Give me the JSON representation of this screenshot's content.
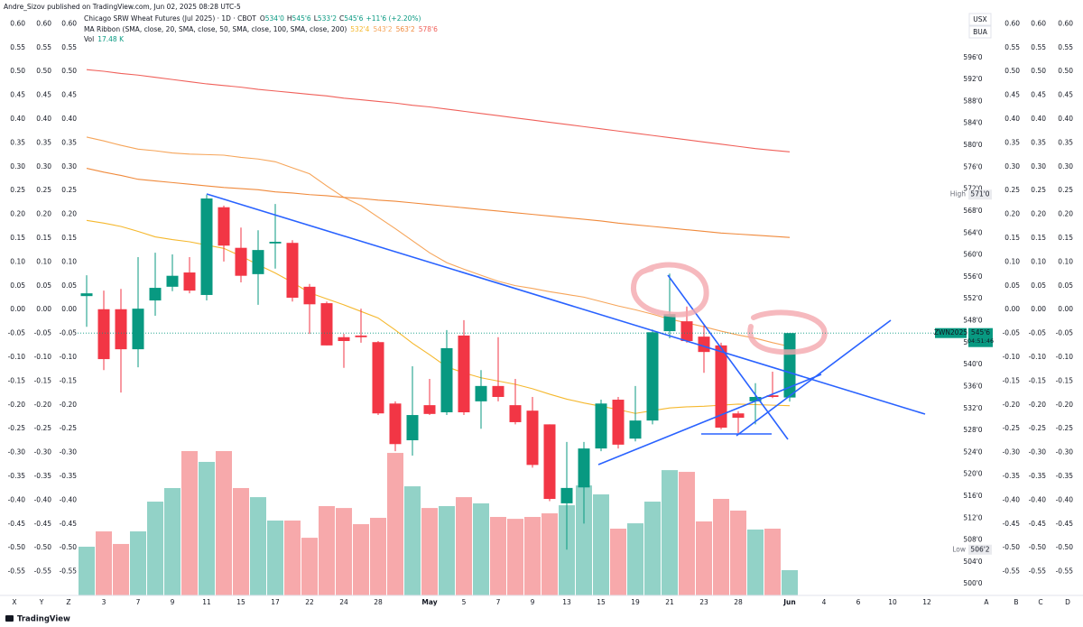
{
  "chart_data": {
    "type": "candlestick",
    "publisher": "Andre_Sizov published on TradingView.com, Jun 02, 2025 08:28 UTC-5",
    "legend": {
      "title": "Chicago SRW Wheat Futures (Jul 2025) · 1D · CBOT",
      "ohlc": [
        {
          "key": "O",
          "value": "534'0"
        },
        {
          "key": "H",
          "value": "545'6"
        },
        {
          "key": "L",
          "value": "533'2"
        },
        {
          "key": "C",
          "value": "545'6"
        }
      ],
      "change": "+11'6 (+2.20%)",
      "ma_label": "MA Ribbon (SMA, close, 20, SMA, close, 50, SMA, close, 100, SMA, close, 200)",
      "volume_label": "Vol",
      "volume_last": "17.48 K"
    },
    "up_color": "#089981",
    "down_color": "#f23645",
    "up_volume_color": "#92d2c7",
    "down_volume_color": "#f7a9ab",
    "categories": [
      null,
      "3",
      null,
      "7",
      null,
      "9",
      null,
      "11",
      null,
      "15",
      null,
      "17",
      null,
      "22",
      null,
      "24",
      null,
      "28",
      null,
      null,
      "May",
      null,
      "5",
      null,
      "7",
      null,
      "9",
      null,
      "13",
      null,
      "15",
      null,
      "19",
      null,
      "21",
      null,
      "23",
      null,
      "28",
      null,
      null,
      "Jun"
    ],
    "future_categories": [
      null,
      "4",
      null,
      "6",
      null,
      "10",
      null,
      "12"
    ],
    "open": [
      552.5,
      550.1,
      550.1,
      542.8,
      551.7,
      554.2,
      556.8,
      552.7,
      568.7,
      561.3,
      556.5,
      562.1,
      562.2,
      554.2,
      551.2,
      545.0,
      545.3,
      544.1,
      532.9,
      526.2,
      532.6,
      531.3,
      545.3,
      533.3,
      536.1,
      532.6,
      531.6,
      529.1,
      514.7,
      517.6,
      524.7,
      533.6,
      526.5,
      529.8,
      546.1,
      547.9,
      545.1,
      543.5,
      531.1,
      533.3,
      534.4,
      534.0
    ],
    "high": [
      556.3,
      553.5,
      553.8,
      559.6,
      560.4,
      560.1,
      559.6,
      571.0,
      569.0,
      565.0,
      564.5,
      569.3,
      562.7,
      554.7,
      551.5,
      545.6,
      550.2,
      544.3,
      533.3,
      539.7,
      537.4,
      546.3,
      548.1,
      539.0,
      545.0,
      537.4,
      534.1,
      529.1,
      525.9,
      525.9,
      533.6,
      534.1,
      536.1,
      546.4,
      556.6,
      550.6,
      547.3,
      544.0,
      531.5,
      536.6,
      538.7,
      545.75
    ],
    "low": [
      546.9,
      539.0,
      534.9,
      539.5,
      548.9,
      553.4,
      553.0,
      551.7,
      558.8,
      555.0,
      550.9,
      557.5,
      551.5,
      545.6,
      543.5,
      539.4,
      544.0,
      530.8,
      524.2,
      523.4,
      530.8,
      530.8,
      530.8,
      528.3,
      533.3,
      529.1,
      521.2,
      515.1,
      506.25,
      511.0,
      524.2,
      524.7,
      526.0,
      529.1,
      544.8,
      544.0,
      538.5,
      528.2,
      527.5,
      529.1,
      533.9,
      533.25
    ],
    "close": [
      553.0,
      541.0,
      542.8,
      550.2,
      554.0,
      556.2,
      553.5,
      570.3,
      561.7,
      556.2,
      560.9,
      562.4,
      552.2,
      551.0,
      543.5,
      544.3,
      545.0,
      531.1,
      525.5,
      530.8,
      531.0,
      543.0,
      531.3,
      536.1,
      534.1,
      529.5,
      521.7,
      515.5,
      517.5,
      524.7,
      532.9,
      525.4,
      529.8,
      545.9,
      549.2,
      544.3,
      542.3,
      528.5,
      530.3,
      534.1,
      534.1,
      545.75
    ],
    "volume": [
      33.7,
      44.3,
      35.6,
      44.3,
      64.9,
      74.3,
      99.9,
      92.4,
      99.9,
      74.3,
      68.0,
      51.8,
      51.8,
      39.9,
      61.8,
      60.5,
      49.3,
      53.7,
      98.6,
      75.5,
      60.5,
      61.8,
      68.0,
      63.7,
      54.3,
      53.0,
      54.3,
      56.8,
      62.4,
      76.1,
      69.9,
      46.2,
      49.9,
      64.9,
      86.7,
      85.5,
      51.2,
      66.8,
      58.7,
      45.6,
      46.2,
      17.48
    ],
    "volume_ylim": [
      0,
      412
    ],
    "moving_averages": [
      {
        "color": "#f5b82e",
        "last_label": "532'4",
        "values": [
          566.3,
          565.8,
          565.2,
          564.3,
          563.3,
          562.8,
          562.4,
          561.8,
          561.2,
          559.8,
          558.2,
          556.7,
          555.0,
          553.1,
          552.0,
          550.9,
          549.7,
          548.5,
          546.3,
          543.9,
          541.8,
          539.6,
          538.5,
          537.6,
          537.0,
          536.4,
          535.6,
          534.6,
          533.7,
          533.0,
          532.4,
          531.8,
          531.1,
          531.6,
          532.1,
          532.3,
          532.4,
          532.6,
          532.8,
          532.7,
          532.6,
          532.5
        ]
      },
      {
        "color": "#f6a55a",
        "last_label": "543'2",
        "values": [
          581.5,
          580.8,
          580.0,
          579.3,
          579.0,
          578.6,
          578.4,
          578.3,
          578.2,
          577.8,
          577.5,
          577.0,
          575.9,
          574.8,
          572.6,
          570.5,
          569.0,
          566.9,
          564.8,
          562.6,
          560.4,
          558.6,
          557.4,
          556.3,
          555.2,
          554.4,
          553.9,
          553.3,
          552.8,
          552.3,
          551.5,
          550.7,
          550.0,
          549.2,
          548.3,
          547.6,
          546.9,
          546.1,
          545.4,
          544.8,
          544.0,
          543.3
        ]
      },
      {
        "color": "#f08a3c",
        "last_label": "563'2",
        "values": [
          575.8,
          575.1,
          574.5,
          573.8,
          573.5,
          573.2,
          572.9,
          572.6,
          572.3,
          572.1,
          571.9,
          571.5,
          571.3,
          571.0,
          570.8,
          570.5,
          570.3,
          570.0,
          569.8,
          569.5,
          569.2,
          568.9,
          568.6,
          568.3,
          568.0,
          567.7,
          567.4,
          567.1,
          566.8,
          566.5,
          566.2,
          565.8,
          565.5,
          565.2,
          564.9,
          564.6,
          564.3,
          564.0,
          563.8,
          563.6,
          563.4,
          563.2
        ]
      },
      {
        "color": "#f0605a",
        "last_label": "578'6",
        "values": [
          593.8,
          593.5,
          593.1,
          592.8,
          592.4,
          592.0,
          591.6,
          591.2,
          590.9,
          590.6,
          590.2,
          589.9,
          589.6,
          589.3,
          589.0,
          588.6,
          588.3,
          588.0,
          587.7,
          587.3,
          587.0,
          586.6,
          586.2,
          585.8,
          585.4,
          585.0,
          584.6,
          584.2,
          583.8,
          583.4,
          583.0,
          582.6,
          582.2,
          581.8,
          581.4,
          581.0,
          580.6,
          580.2,
          579.8,
          579.4,
          579.1,
          578.8
        ]
      }
    ],
    "ylim": [
      497.9,
      606.5
    ],
    "yticks": [
      {
        "value": 500,
        "label": "500'0"
      },
      {
        "value": 504,
        "label": "504'0"
      },
      {
        "value": 508,
        "label": "508'0"
      },
      {
        "value": 512,
        "label": "512'0"
      },
      {
        "value": 516,
        "label": "516'0"
      },
      {
        "value": 520,
        "label": "520'0"
      },
      {
        "value": 524,
        "label": "524'0"
      },
      {
        "value": 528,
        "label": "528'0"
      },
      {
        "value": 532,
        "label": "532'0"
      },
      {
        "value": 536,
        "label": "536'0"
      },
      {
        "value": 540,
        "label": "540'0"
      },
      {
        "value": 544,
        "label": "544'0"
      },
      {
        "value": 548,
        "label": "548'0"
      },
      {
        "value": 552,
        "label": "552'0"
      },
      {
        "value": 556,
        "label": "556'0"
      },
      {
        "value": 560,
        "label": "560'0"
      },
      {
        "value": 564,
        "label": "564'0"
      },
      {
        "value": 568,
        "label": "568'0"
      },
      {
        "value": 572,
        "label": "572'0"
      },
      {
        "value": 576,
        "label": "576'0"
      },
      {
        "value": 580,
        "label": "580'0"
      },
      {
        "value": 584,
        "label": "584'0"
      },
      {
        "value": 588,
        "label": "588'0"
      },
      {
        "value": 592,
        "label": "592'0"
      },
      {
        "value": 596,
        "label": "596'0"
      }
    ],
    "osc_ylim": [
      -0.6,
      0.65
    ],
    "osc_yticks": [
      {
        "value": 0.6,
        "label": "0.60"
      },
      {
        "value": 0.55,
        "label": "0.55"
      },
      {
        "value": 0.5,
        "label": "0.50"
      },
      {
        "value": 0.45,
        "label": "0.45"
      },
      {
        "value": 0.4,
        "label": "0.40"
      },
      {
        "value": 0.35,
        "label": "0.35"
      },
      {
        "value": 0.3,
        "label": "0.30"
      },
      {
        "value": 0.25,
        "label": "0.25"
      },
      {
        "value": 0.2,
        "label": "0.20"
      },
      {
        "value": 0.15,
        "label": "0.15"
      },
      {
        "value": 0.1,
        "label": "0.10"
      },
      {
        "value": 0.05,
        "label": "0.05"
      },
      {
        "value": 0,
        "label": "0.00"
      },
      {
        "value": -0.05,
        "label": "-0.05"
      },
      {
        "value": -0.1,
        "label": "-0.10"
      },
      {
        "value": -0.15,
        "label": "-0.15"
      },
      {
        "value": -0.2,
        "label": "-0.20"
      },
      {
        "value": -0.25,
        "label": "-0.25"
      },
      {
        "value": -0.3,
        "label": "-0.30"
      },
      {
        "value": -0.35,
        "label": "-0.35"
      },
      {
        "value": -0.4,
        "label": "-0.40"
      },
      {
        "value": -0.45,
        "label": "-0.45"
      },
      {
        "value": -0.5,
        "label": "-0.50"
      },
      {
        "value": -0.55,
        "label": "-0.55"
      }
    ],
    "high_tag": {
      "label": "High",
      "text": "571'0"
    },
    "low_tag": {
      "label": "Low",
      "text": "506'2"
    },
    "last_tag": {
      "symbol": "ZWN2025",
      "price": "545'6",
      "countdown": "04:51:46"
    },
    "currency_buttons": [
      "USX",
      "BUA"
    ],
    "left_letters": [
      "X",
      "Y",
      "Z"
    ],
    "right_letters": [
      "A",
      "B",
      "C",
      "D"
    ],
    "logo": "TradingView",
    "grid": false
  }
}
